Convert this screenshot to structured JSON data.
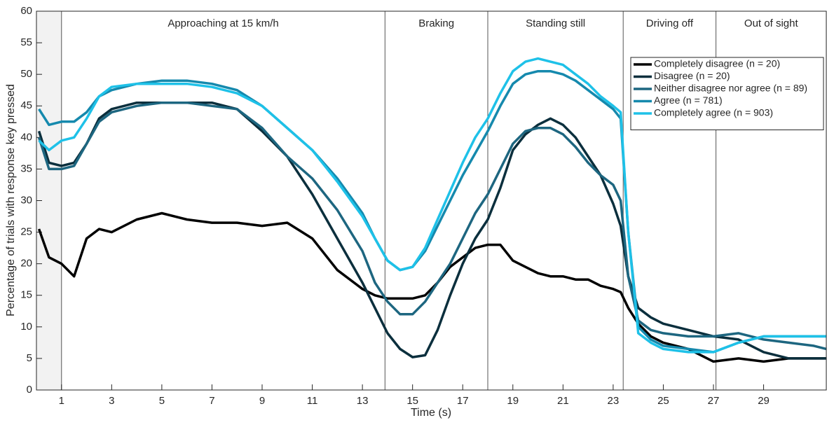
{
  "chart_data": {
    "type": "line",
    "xlabel": "Time (s)",
    "ylabel": "Percentage of trials with response key pressed",
    "xlim": [
      0,
      31.5
    ],
    "ylim": [
      0,
      60
    ],
    "xticks": [
      1,
      3,
      5,
      7,
      9,
      11,
      13,
      15,
      17,
      19,
      21,
      23,
      25,
      27,
      29
    ],
    "yticks": [
      0,
      5,
      10,
      15,
      20,
      25,
      30,
      35,
      40,
      45,
      50,
      55,
      60
    ],
    "shaded": [
      0,
      1
    ],
    "phases": [
      {
        "label": "Approaching at 15 km/h",
        "start": 1
      },
      {
        "label": "Braking",
        "start": 13.9
      },
      {
        "label": "Standing still",
        "start": 18
      },
      {
        "label": "Driving off",
        "start": 23.4
      },
      {
        "label": "Out of sight",
        "start": 27.1
      }
    ],
    "legend": "upper right",
    "x": [
      0.1,
      0.5,
      1,
      1.5,
      2,
      2.5,
      3,
      4,
      5,
      6,
      7,
      8,
      9,
      10,
      11,
      12,
      13,
      13.5,
      14,
      14.5,
      15,
      15.5,
      16,
      16.5,
      17,
      17.5,
      18,
      18.5,
      19,
      19.5,
      20,
      20.5,
      21,
      21.5,
      22,
      22.5,
      23,
      23.3,
      23.6,
      24,
      24.5,
      25,
      26,
      27,
      28,
      29,
      30,
      31,
      31.5
    ],
    "series": [
      {
        "name": "Completely disagree (n = 20)",
        "color": "#000000",
        "values": [
          25.5,
          21,
          20,
          18,
          24,
          25.5,
          25,
          27,
          28,
          27,
          26.5,
          26.5,
          26,
          26.5,
          24,
          19,
          16,
          15,
          14.5,
          14.5,
          14.5,
          15,
          17,
          19.5,
          21,
          22.5,
          23,
          23,
          20.5,
          19.5,
          18.5,
          18,
          18,
          17.5,
          17.5,
          16.5,
          16,
          15.5,
          13,
          10.5,
          8.5,
          7.5,
          6.5,
          4.5,
          5,
          4.5,
          5,
          5,
          5
        ]
      },
      {
        "name": "Disagree (n = 20)",
        "color": "#0b2f3d",
        "values": [
          41,
          36,
          35.5,
          36,
          39,
          43,
          44.5,
          45.5,
          45.5,
          45.5,
          45.5,
          44.5,
          41,
          37,
          31,
          24,
          17,
          13,
          9,
          6.5,
          5.2,
          5.5,
          9.5,
          15,
          20,
          24,
          27,
          32,
          38,
          40.5,
          42,
          43,
          42,
          40,
          37,
          34,
          29.5,
          26,
          18,
          13,
          11.5,
          10.5,
          9.5,
          8.5,
          8,
          6,
          5,
          5,
          5
        ]
      },
      {
        "name": "Neither disagree nor agree (n = 89)",
        "color": "#1d6680",
        "values": [
          40,
          35,
          35,
          35.5,
          39,
          42.5,
          44,
          45,
          45.5,
          45.5,
          45,
          44.5,
          41.5,
          37,
          33.5,
          28.5,
          22,
          17,
          14,
          12,
          12,
          14,
          17,
          20,
          24,
          28,
          31,
          35,
          39,
          41,
          41.5,
          41.5,
          40.5,
          38.5,
          36,
          34,
          32.5,
          30,
          18,
          11,
          9.5,
          9,
          8.5,
          8.5,
          9,
          8,
          7.5,
          7,
          6.5
        ]
      },
      {
        "name": "Agree (n = 781)",
        "color": "#1589ad",
        "values": [
          44.5,
          42,
          42.5,
          42.5,
          44,
          46.5,
          47.5,
          48.5,
          49,
          49,
          48.5,
          47.5,
          45,
          41.5,
          38,
          33.5,
          28,
          24,
          20.5,
          19,
          19.5,
          22,
          26,
          30,
          34,
          37.5,
          41,
          45,
          48.5,
          50,
          50.5,
          50.5,
          50,
          49,
          47.5,
          46,
          44.5,
          43,
          25,
          10,
          8,
          7,
          6.5,
          6,
          7.5,
          8.5,
          8.5,
          8.5,
          8.5
        ]
      },
      {
        "name": "Completely agree (n = 903)",
        "color": "#1ec1e8",
        "values": [
          39.5,
          38,
          39.5,
          40,
          43,
          46.5,
          48,
          48.5,
          48.5,
          48.5,
          48,
          47,
          45,
          41.5,
          38,
          33,
          27.5,
          24,
          20.5,
          19,
          19.5,
          22.5,
          27,
          31.5,
          36,
          40,
          43,
          47,
          50.5,
          52,
          52.5,
          52,
          51.5,
          50,
          48.5,
          46.5,
          45,
          44,
          25,
          9,
          7.5,
          6.5,
          6,
          6,
          7.5,
          8.5,
          8.5,
          8.5,
          8.5
        ]
      }
    ]
  }
}
